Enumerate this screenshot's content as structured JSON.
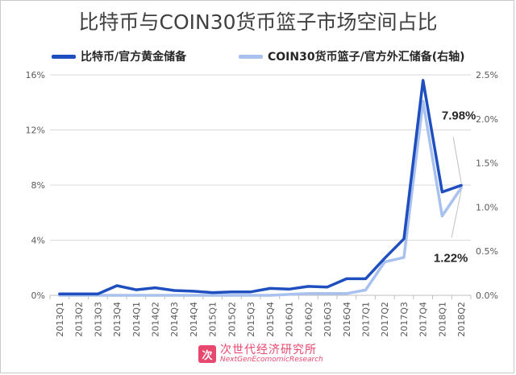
{
  "chart_data": {
    "type": "line",
    "title": "比特币与COIN30货币篮子市场空间占比",
    "categories": [
      "2013Q1",
      "2013Q2",
      "2013Q3",
      "2013Q4",
      "2014Q1",
      "2014Q2",
      "2014Q3",
      "2014Q4",
      "2015Q1",
      "2015Q2",
      "2015Q3",
      "2015Q4",
      "2016Q1",
      "2016Q2",
      "2016Q3",
      "2016Q4",
      "2017Q1",
      "2017Q2",
      "2017Q3",
      "2017Q4",
      "2018Q1",
      "2018Q2"
    ],
    "left_axis": {
      "ylim": [
        0,
        16
      ],
      "ticks": [
        "0%",
        "4%",
        "8%",
        "12%",
        "16%"
      ],
      "tick_values": [
        0,
        4,
        8,
        12,
        16
      ]
    },
    "right_axis": {
      "ylim": [
        0,
        2.5
      ],
      "ticks": [
        "0.0%",
        "0.5%",
        "1.0%",
        "1.5%",
        "2.0%",
        "2.5%"
      ],
      "tick_values": [
        0,
        0.5,
        1.0,
        1.5,
        2.0,
        2.5
      ]
    },
    "series": [
      {
        "name": "比特币/官方黄金储备",
        "axis": "left",
        "color": "#1f4fbf",
        "values": [
          0.1,
          0.1,
          0.1,
          0.7,
          0.4,
          0.55,
          0.35,
          0.3,
          0.2,
          0.25,
          0.25,
          0.5,
          0.45,
          0.65,
          0.6,
          1.2,
          1.2,
          2.7,
          4.1,
          15.6,
          7.5,
          7.98
        ]
      },
      {
        "name": "COIN30货币篮子/官方外汇储备(右轴)",
        "axis": "right",
        "color": "#a9c1ee",
        "values": [
          0.0,
          0.0,
          0.0,
          0.0,
          0.0,
          0.0,
          0.0,
          0.0,
          0.0,
          0.0,
          0.0,
          0.0,
          0.01,
          0.02,
          0.02,
          0.02,
          0.06,
          0.38,
          0.43,
          2.2,
          0.9,
          1.22
        ]
      }
    ],
    "annotations": [
      {
        "text": "7.98%",
        "series": 0,
        "index": 21
      },
      {
        "text": "1.22%",
        "series": 1,
        "index": 21
      }
    ],
    "grid": "horizontal",
    "legend_position": "top"
  },
  "watermark": {
    "badge": "次",
    "main": "次世代经济研究所",
    "sub": "NextGenEcomomicResearch"
  }
}
